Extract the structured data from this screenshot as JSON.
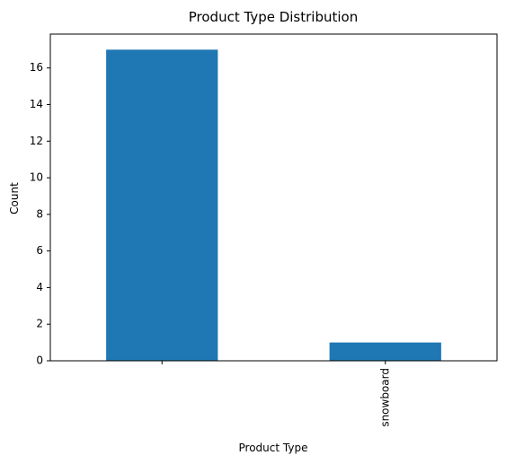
{
  "chart_data": {
    "type": "bar",
    "title": "Product Type Distribution",
    "xlabel": "Product Type",
    "ylabel": "Count",
    "categories": [
      "",
      "snowboard"
    ],
    "values": [
      17,
      1
    ],
    "yticks": [
      0,
      2,
      4,
      6,
      8,
      10,
      12,
      14,
      16
    ],
    "ylim": [
      0,
      17.85
    ],
    "grid": false,
    "legend": "none",
    "bar_color": "#1f77b4",
    "x_tick_rotation": "vertical"
  }
}
